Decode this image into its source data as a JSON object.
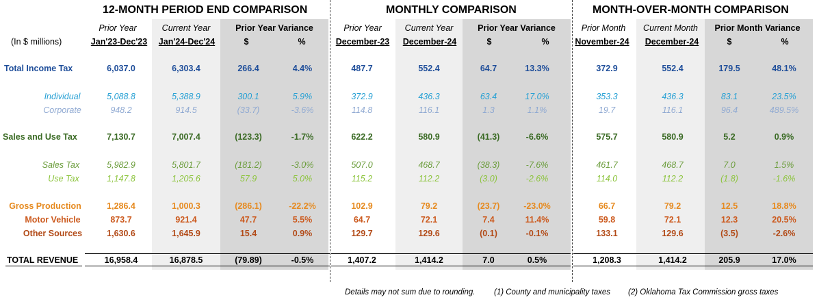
{
  "sections": [
    {
      "title": "12-MONTH PERIOD END COMPARISON",
      "col1": {
        "top": "Prior Year",
        "bottom": "Jan'23-Dec'23"
      },
      "col2": {
        "top": "Current Year",
        "bottom": "Jan'24-Dec'24"
      },
      "variance": {
        "top": "Prior Year Variance",
        "dollar": "$",
        "pct": "%"
      }
    },
    {
      "title": "MONTHLY COMPARISON",
      "col1": {
        "top": "Prior Year",
        "bottom": "December-23"
      },
      "col2": {
        "top": "Current Year",
        "bottom": "December-24"
      },
      "variance": {
        "top": "Prior Year Variance",
        "dollar": "$",
        "pct": "%"
      }
    },
    {
      "title": "MONTH-OVER-MONTH COMPARISON",
      "col1": {
        "top": "Prior Month",
        "bottom": "November-24"
      },
      "col2": {
        "top": "Current Month",
        "bottom": "December-24"
      },
      "variance": {
        "top": "Prior Month Variance",
        "dollar": "$",
        "pct": "%"
      }
    }
  ],
  "units_label": "(In $ millions)",
  "rows": [
    {
      "label": "Total Income Tax",
      "color": "#1f4e9a",
      "style": "bold",
      "values": [
        "6,037.0",
        "6,303.4",
        "266.4",
        "4.4%",
        "487.7",
        "552.4",
        "64.7",
        "13.3%",
        "372.9",
        "552.4",
        "179.5",
        "48.1%"
      ]
    },
    {
      "label": "Individual",
      "color": "#27a0d4",
      "style": "italic",
      "values": [
        "5,088.8",
        "5,388.9",
        "300.1",
        "5.9%",
        "372.9",
        "436.3",
        "63.4",
        "17.0%",
        "353.3",
        "436.3",
        "83.1",
        "23.5%"
      ]
    },
    {
      "label": "Corporate",
      "color": "#8fa9d2",
      "style": "italic",
      "values": [
        "948.2",
        "914.5",
        "(33.7)",
        "-3.6%",
        "114.8",
        "116.1",
        "1.3",
        "1.1%",
        "19.7",
        "116.1",
        "96.4",
        "489.5%"
      ]
    },
    {
      "label": "Sales and Use Tax",
      "color": "#3b6b25",
      "style": "bold",
      "values": [
        "7,130.7",
        "7,007.4",
        "(123.3)",
        "-1.7%",
        "622.2",
        "580.9",
        "(41.3)",
        "-6.6%",
        "575.7",
        "580.9",
        "5.2",
        "0.9%"
      ]
    },
    {
      "label": "Sales Tax",
      "color": "#6a9c3a",
      "style": "italic",
      "values": [
        "5,982.9",
        "5,801.7",
        "(181.2)",
        "-3.0%",
        "507.0",
        "468.7",
        "(38.3)",
        "-7.6%",
        "461.7",
        "468.7",
        "7.0",
        "1.5%"
      ]
    },
    {
      "label": "Use Tax",
      "color": "#8cc43c",
      "style": "italic",
      "values": [
        "1,147.8",
        "1,205.6",
        "57.9",
        "5.0%",
        "115.2",
        "112.2",
        "(3.0)",
        "-2.6%",
        "114.0",
        "112.2",
        "(1.8)",
        "-1.6%"
      ]
    },
    {
      "label": "Gross Production",
      "color": "#e68a1f",
      "style": "bold",
      "values": [
        "1,286.4",
        "1,000.3",
        "(286.1)",
        "-22.2%",
        "102.9",
        "79.2",
        "(23.7)",
        "-23.0%",
        "66.7",
        "79.2",
        "12.5",
        "18.8%"
      ]
    },
    {
      "label": "Motor Vehicle",
      "color": "#cc5a1e",
      "style": "bold",
      "values": [
        "873.7",
        "921.4",
        "47.7",
        "5.5%",
        "64.7",
        "72.1",
        "7.4",
        "11.4%",
        "59.8",
        "72.1",
        "12.3",
        "20.5%"
      ]
    },
    {
      "label": "Other Sources",
      "color": "#b24a17",
      "style": "bold",
      "values": [
        "1,630.6",
        "1,645.9",
        "15.4",
        "0.9%",
        "129.7",
        "129.6",
        "(0.1)",
        "-0.1%",
        "133.1",
        "129.6",
        "(3.5)",
        "-2.6%"
      ]
    },
    {
      "label": "TOTAL REVENUE",
      "color": "#000000",
      "style": "bold",
      "values": [
        "16,958.4",
        "16,878.5",
        "(79.89)",
        "-0.5%",
        "1,407.2",
        "1,414.2",
        "7.0",
        "0.5%",
        "1,208.3",
        "1,414.2",
        "205.9",
        "17.0%"
      ]
    }
  ],
  "footnotes": {
    "rounding": "Details may not sum due to rounding.",
    "note1": "(1) County and municipality taxes",
    "note2": "(2) Oklahoma Tax Commission gross taxes"
  }
}
